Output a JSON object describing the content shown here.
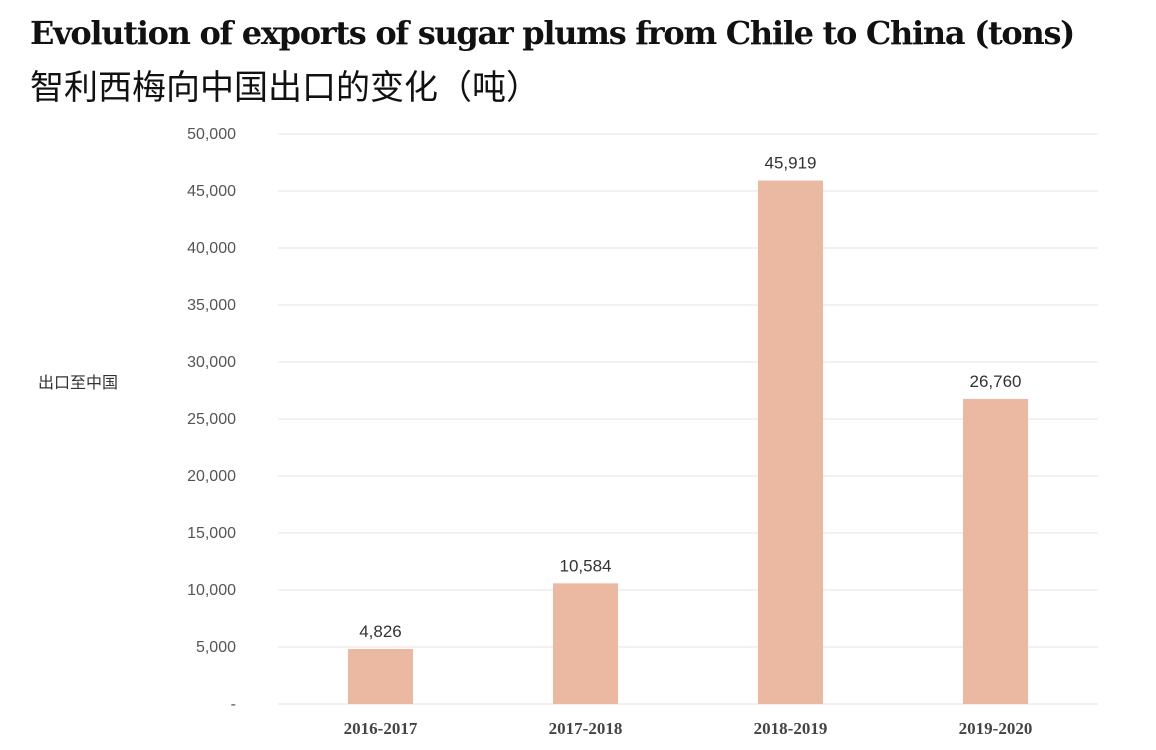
{
  "chart_data": {
    "type": "bar",
    "title": "Evolution of exports of sugar plums from Chile to China (tons)",
    "subtitle": "智利西梅向中国出口的变化（吨）",
    "ylabel": "出口至中国",
    "xlabel": "",
    "categories": [
      "2016-2017",
      "2017-2018",
      "2018-2019",
      "2019-2020"
    ],
    "values": [
      4826,
      10584,
      45919,
      26760
    ],
    "value_labels": [
      "4,826",
      "10,584",
      "45,919",
      "26,760"
    ],
    "ylim": [
      0,
      50000
    ],
    "yticks": [
      0,
      5000,
      10000,
      15000,
      20000,
      25000,
      30000,
      35000,
      40000,
      45000,
      50000
    ],
    "ytick_labels": [
      "-",
      "5,000",
      "10,000",
      "15,000",
      "20,000",
      "25,000",
      "30,000",
      "35,000",
      "40,000",
      "45,000",
      "50,000"
    ],
    "grid": true,
    "legend": "none",
    "bar_color": "#ebb9a2",
    "grid_color": "#e3e3e3"
  }
}
